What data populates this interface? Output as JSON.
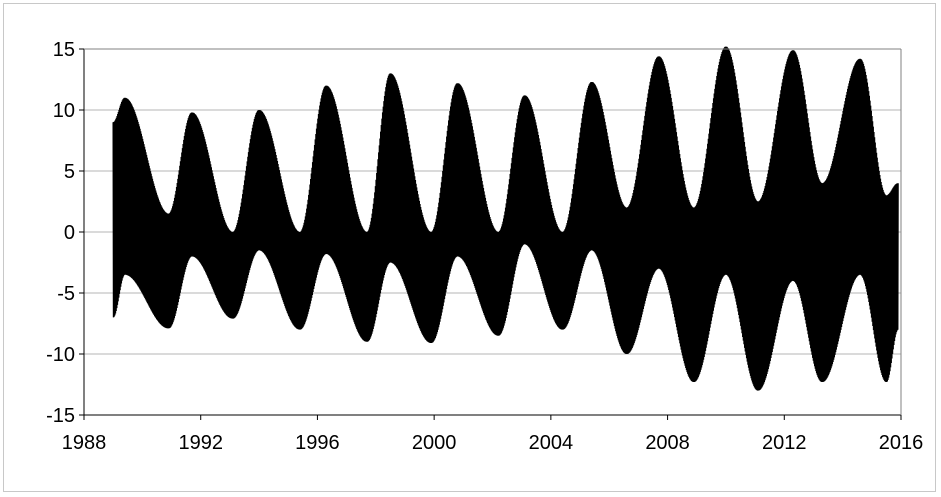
{
  "chart_data": {
    "type": "line",
    "title": "",
    "xlabel": "",
    "ylabel": "",
    "xlim": [
      1988,
      2016
    ],
    "ylim": [
      -15,
      15
    ],
    "x_ticks": [
      1988,
      1992,
      1996,
      2000,
      2004,
      2008,
      2012,
      2016
    ],
    "y_ticks": [
      15,
      10,
      5,
      0,
      -5,
      -10,
      -15
    ],
    "grid": "horizontal",
    "legend": "none",
    "x_start": 1989,
    "x_end": 2015.9,
    "peaks": [
      {
        "x": 1989.4,
        "max": 11.0,
        "min": -3.5
      },
      {
        "x": 1991.7,
        "max": 9.8,
        "min": -2.0
      },
      {
        "x": 1994.0,
        "max": 10.0,
        "min": -1.5
      },
      {
        "x": 1996.3,
        "max": 12.0,
        "min": -1.8
      },
      {
        "x": 1998.5,
        "max": 13.0,
        "min": -2.5
      },
      {
        "x": 2000.8,
        "max": 12.2,
        "min": -2.0
      },
      {
        "x": 2003.1,
        "max": 11.2,
        "min": -1.0
      },
      {
        "x": 2005.4,
        "max": 12.3,
        "min": -1.5
      },
      {
        "x": 2007.7,
        "max": 14.4,
        "min": -3.0
      },
      {
        "x": 2010.0,
        "max": 15.2,
        "min": -3.5
      },
      {
        "x": 2012.3,
        "max": 14.9,
        "min": -4.0
      },
      {
        "x": 2014.6,
        "max": 14.2,
        "min": -3.5
      }
    ],
    "troughs": [
      {
        "x": 1989.0,
        "max": 9.0,
        "min": -7.0
      },
      {
        "x": 1990.9,
        "max": 1.5,
        "min": -7.9
      },
      {
        "x": 1993.1,
        "max": 0.0,
        "min": -7.1
      },
      {
        "x": 1995.4,
        "max": 0.0,
        "min": -8.0
      },
      {
        "x": 1997.7,
        "max": 0.0,
        "min": -9.0
      },
      {
        "x": 1999.9,
        "max": 0.0,
        "min": -9.1
      },
      {
        "x": 2002.2,
        "max": 0.0,
        "min": -8.5
      },
      {
        "x": 2004.4,
        "max": 0.0,
        "min": -8.0
      },
      {
        "x": 2006.6,
        "max": 2.0,
        "min": -10.0
      },
      {
        "x": 2008.9,
        "max": 2.0,
        "min": -12.3
      },
      {
        "x": 2011.1,
        "max": 2.5,
        "min": -13.0
      },
      {
        "x": 2013.3,
        "max": 4.0,
        "min": -12.3
      },
      {
        "x": 2015.5,
        "max": 3.0,
        "min": -12.3
      }
    ],
    "series_color": "#000000",
    "grid_color": "#b5b5b5"
  }
}
